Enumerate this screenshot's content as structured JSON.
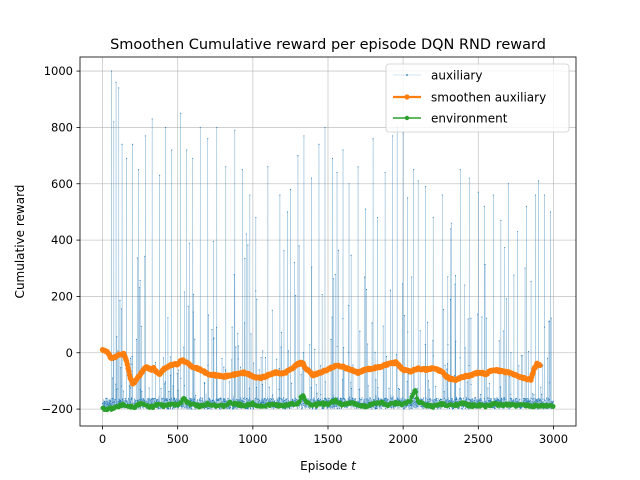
{
  "chart_data": {
    "type": "line",
    "title": "Smoothen Cumulative reward per episode DQN RND reward",
    "xlabel_text": "Episode ",
    "xlabel_var": "t",
    "ylabel": "Cumulative reward",
    "xlim": [
      -150,
      3150
    ],
    "ylim": [
      -260,
      1050
    ],
    "xticks": [
      0,
      500,
      1000,
      1500,
      2000,
      2500,
      3000
    ],
    "yticks": [
      -200,
      0,
      200,
      400,
      600,
      800,
      1000
    ],
    "grid": true,
    "legend_position": "upper right",
    "episodes": 3000,
    "series": [
      {
        "name": "auxiliary",
        "color": "#1f77b4",
        "style": "thin line with point markers",
        "baseline": -165,
        "spike_peaks": [
          [
            60,
            1000
          ],
          [
            75,
            820
          ],
          [
            90,
            960
          ],
          [
            108,
            940
          ],
          [
            130,
            740
          ],
          [
            160,
            690
          ],
          [
            200,
            740
          ],
          [
            240,
            650
          ],
          [
            285,
            770
          ],
          [
            330,
            830
          ],
          [
            380,
            630
          ],
          [
            420,
            800
          ],
          [
            460,
            720
          ],
          [
            520,
            850
          ],
          [
            560,
            720
          ],
          [
            600,
            690
          ],
          [
            650,
            800
          ],
          [
            700,
            760
          ],
          [
            760,
            800
          ],
          [
            820,
            660
          ],
          [
            880,
            790
          ],
          [
            930,
            650
          ],
          [
            980,
            560
          ],
          [
            1020,
            480
          ],
          [
            1100,
            660
          ],
          [
            1180,
            560
          ],
          [
            1230,
            500
          ],
          [
            1250,
            580
          ],
          [
            1300,
            700
          ],
          [
            1340,
            770
          ],
          [
            1390,
            620
          ],
          [
            1440,
            740
          ],
          [
            1480,
            800
          ],
          [
            1530,
            690
          ],
          [
            1560,
            640
          ],
          [
            1600,
            720
          ],
          [
            1640,
            600
          ],
          [
            1700,
            660
          ],
          [
            1750,
            510
          ],
          [
            1800,
            760
          ],
          [
            1830,
            480
          ],
          [
            1880,
            640
          ],
          [
            1930,
            770
          ],
          [
            1960,
            800
          ],
          [
            2000,
            780
          ],
          [
            2030,
            550
          ],
          [
            2070,
            650
          ],
          [
            2100,
            610
          ],
          [
            2150,
            590
          ],
          [
            2200,
            480
          ],
          [
            2260,
            560
          ],
          [
            2320,
            460
          ],
          [
            2380,
            650
          ],
          [
            2440,
            620
          ],
          [
            2500,
            570
          ],
          [
            2540,
            520
          ],
          [
            2600,
            560
          ],
          [
            2650,
            470
          ],
          [
            2700,
            600
          ],
          [
            2760,
            430
          ],
          [
            2820,
            520
          ],
          [
            2880,
            560
          ],
          [
            2900,
            610
          ],
          [
            2940,
            560
          ],
          [
            2980,
            500
          ]
        ]
      },
      {
        "name": "smoothen auxiliary",
        "color": "#ff7f0e",
        "style": "thick line with circle markers",
        "points": [
          [
            0,
            12
          ],
          [
            20,
            8
          ],
          [
            40,
            -5
          ],
          [
            60,
            -20
          ],
          [
            80,
            -15
          ],
          [
            100,
            -10
          ],
          [
            120,
            -5
          ],
          [
            140,
            -2
          ],
          [
            160,
            -30
          ],
          [
            180,
            -80
          ],
          [
            200,
            -110
          ],
          [
            220,
            -100
          ],
          [
            240,
            -85
          ],
          [
            260,
            -70
          ],
          [
            280,
            -55
          ],
          [
            300,
            -50
          ],
          [
            320,
            -60
          ],
          [
            340,
            -55
          ],
          [
            360,
            -70
          ],
          [
            380,
            -75
          ],
          [
            400,
            -60
          ],
          [
            450,
            -45
          ],
          [
            500,
            -40
          ],
          [
            530,
            -25
          ],
          [
            560,
            -35
          ],
          [
            600,
            -50
          ],
          [
            650,
            -60
          ],
          [
            700,
            -75
          ],
          [
            750,
            -80
          ],
          [
            800,
            -85
          ],
          [
            850,
            -80
          ],
          [
            900,
            -75
          ],
          [
            950,
            -70
          ],
          [
            1000,
            -85
          ],
          [
            1050,
            -90
          ],
          [
            1100,
            -80
          ],
          [
            1150,
            -70
          ],
          [
            1200,
            -75
          ],
          [
            1250,
            -60
          ],
          [
            1300,
            -40
          ],
          [
            1330,
            -35
          ],
          [
            1350,
            -55
          ],
          [
            1400,
            -80
          ],
          [
            1450,
            -70
          ],
          [
            1500,
            -60
          ],
          [
            1550,
            -45
          ],
          [
            1600,
            -50
          ],
          [
            1650,
            -60
          ],
          [
            1700,
            -70
          ],
          [
            1750,
            -60
          ],
          [
            1800,
            -55
          ],
          [
            1850,
            -50
          ],
          [
            1900,
            -40
          ],
          [
            1950,
            -35
          ],
          [
            2000,
            -60
          ],
          [
            2050,
            -65
          ],
          [
            2100,
            -55
          ],
          [
            2150,
            -60
          ],
          [
            2200,
            -55
          ],
          [
            2250,
            -65
          ],
          [
            2300,
            -90
          ],
          [
            2350,
            -95
          ],
          [
            2400,
            -85
          ],
          [
            2450,
            -80
          ],
          [
            2500,
            -70
          ],
          [
            2550,
            -75
          ],
          [
            2600,
            -60
          ],
          [
            2650,
            -65
          ],
          [
            2700,
            -70
          ],
          [
            2750,
            -80
          ],
          [
            2800,
            -90
          ],
          [
            2850,
            -95
          ],
          [
            2870,
            -60
          ],
          [
            2890,
            -40
          ],
          [
            2910,
            -45
          ]
        ]
      },
      {
        "name": "environment",
        "color": "#2ca02c",
        "style": "line with circle markers",
        "points": [
          [
            0,
            -200
          ],
          [
            40,
            -199
          ],
          [
            70,
            -198
          ],
          [
            100,
            -190
          ],
          [
            130,
            -185
          ],
          [
            170,
            -188
          ],
          [
            210,
            -192
          ],
          [
            250,
            -180
          ],
          [
            290,
            -188
          ],
          [
            330,
            -192
          ],
          [
            370,
            -184
          ],
          [
            410,
            -190
          ],
          [
            450,
            -182
          ],
          [
            490,
            -186
          ],
          [
            520,
            -178
          ],
          [
            540,
            -160
          ],
          [
            560,
            -176
          ],
          [
            600,
            -184
          ],
          [
            650,
            -190
          ],
          [
            700,
            -180
          ],
          [
            750,
            -186
          ],
          [
            800,
            -190
          ],
          [
            850,
            -178
          ],
          [
            900,
            -184
          ],
          [
            950,
            -188
          ],
          [
            1000,
            -180
          ],
          [
            1050,
            -190
          ],
          [
            1100,
            -186
          ],
          [
            1150,
            -184
          ],
          [
            1200,
            -190
          ],
          [
            1250,
            -182
          ],
          [
            1300,
            -180
          ],
          [
            1330,
            -150
          ],
          [
            1360,
            -176
          ],
          [
            1400,
            -188
          ],
          [
            1450,
            -180
          ],
          [
            1500,
            -184
          ],
          [
            1550,
            -170
          ],
          [
            1600,
            -186
          ],
          [
            1650,
            -178
          ],
          [
            1700,
            -184
          ],
          [
            1750,
            -190
          ],
          [
            1800,
            -182
          ],
          [
            1850,
            -176
          ],
          [
            1900,
            -186
          ],
          [
            1950,
            -180
          ],
          [
            2000,
            -184
          ],
          [
            2050,
            -170
          ],
          [
            2080,
            -130
          ],
          [
            2100,
            -175
          ],
          [
            2150,
            -186
          ],
          [
            2200,
            -190
          ],
          [
            2250,
            -182
          ],
          [
            2300,
            -188
          ],
          [
            2350,
            -184
          ],
          [
            2400,
            -180
          ],
          [
            2450,
            -188
          ],
          [
            2500,
            -186
          ],
          [
            2550,
            -190
          ],
          [
            2600,
            -182
          ],
          [
            2650,
            -186
          ],
          [
            2700,
            -184
          ],
          [
            2750,
            -188
          ],
          [
            2800,
            -184
          ],
          [
            2850,
            -190
          ],
          [
            2900,
            -186
          ],
          [
            2950,
            -188
          ],
          [
            3000,
            -190
          ]
        ]
      }
    ]
  }
}
